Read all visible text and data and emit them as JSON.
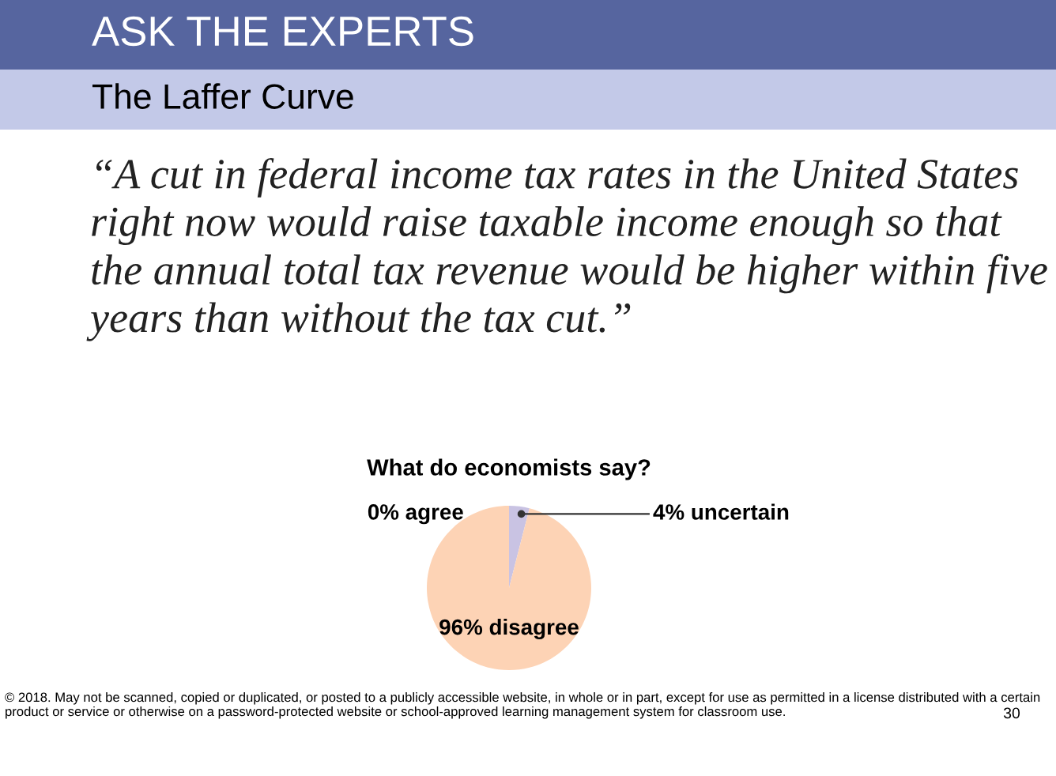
{
  "chart_data": {
    "type": "pie",
    "title": "What do economists say?",
    "subtitle": "The Laffer Curve",
    "categories": [
      "agree",
      "uncertain",
      "disagree"
    ],
    "values": [
      0,
      4,
      96
    ],
    "value_labels": [
      "0%",
      "4%",
      "96%"
    ],
    "colors": [
      "#9aa6d4",
      "#c9c3e3",
      "#fdd3b5"
    ],
    "annotations": [
      "ASK THE EXPERTS",
      "“A cut in federal income tax rates in the United States right now would raise taxable income enough so that the annual total tax revenue would be higher within five years than without the tax cut.”",
      "© 2018. May not be scanned, copied or duplicated, or posted to a publicly accessible website, in whole or in part, except for use as permitted in a license distributed with a certain product or service or otherwise on a password-protected website or school-approved learning management system for classroom use.",
      "30"
    ]
  }
}
